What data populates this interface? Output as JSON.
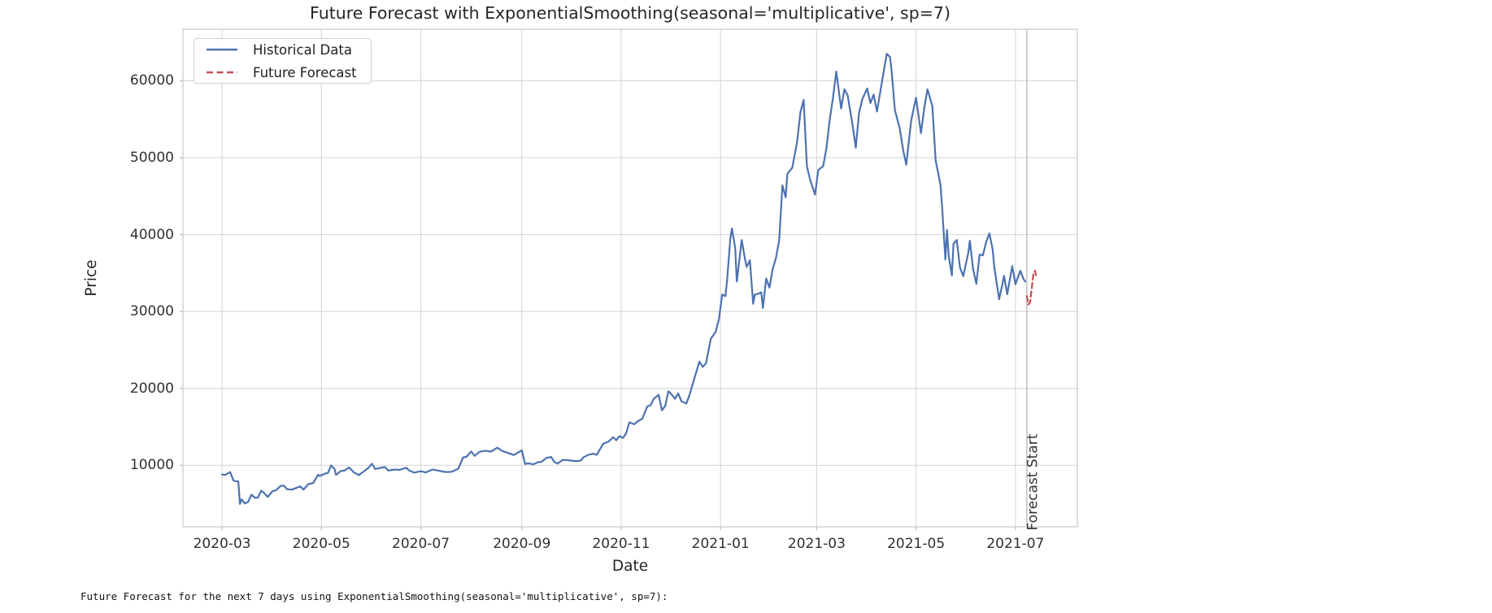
{
  "console_text": "Future Forecast for the next 7 days using ExponentialSmoothing(seasonal='multiplicative', sp=7):",
  "chart_data": {
    "type": "line",
    "title": "Future Forecast with ExponentialSmoothing(seasonal='multiplicative', sp=7)",
    "xlabel": "Date",
    "ylabel": "Price",
    "grid": true,
    "legend_position": "upper left",
    "xlim": [
      "2020-02-06",
      "2021-08-08"
    ],
    "ylim": [
      2000,
      66700
    ],
    "yticks": [
      {
        "value": 10000,
        "label": "10000"
      },
      {
        "value": 20000,
        "label": "20000"
      },
      {
        "value": 30000,
        "label": "30000"
      },
      {
        "value": 40000,
        "label": "40000"
      },
      {
        "value": 50000,
        "label": "50000"
      },
      {
        "value": 60000,
        "label": "60000"
      }
    ],
    "xticks": [
      {
        "date": "2020-03-01",
        "label": "2020-03"
      },
      {
        "date": "2020-05-01",
        "label": "2020-05"
      },
      {
        "date": "2020-07-01",
        "label": "2020-07"
      },
      {
        "date": "2020-09-01",
        "label": "2020-09"
      },
      {
        "date": "2020-11-01",
        "label": "2020-11"
      },
      {
        "date": "2021-01-01",
        "label": "2021-01"
      },
      {
        "date": "2021-03-01",
        "label": "2021-03"
      },
      {
        "date": "2021-05-01",
        "label": "2021-05"
      },
      {
        "date": "2021-07-01",
        "label": "2021-07"
      }
    ],
    "vline": {
      "date": "2021-07-08",
      "label": "Forecast Start",
      "color": "#bcbcbc"
    },
    "style": {
      "grid_color": "#d9d9d9",
      "spine_color": "#cccccc",
      "tick_color": "#bdbdbd",
      "background": "#ffffff"
    },
    "series": [
      {
        "name": "Historical Data",
        "color": "#4C72B0",
        "dash": null,
        "data": [
          [
            "2020-03-01",
            8800
          ],
          [
            "2020-03-03",
            8760
          ],
          [
            "2020-03-06",
            9120
          ],
          [
            "2020-03-08",
            8040
          ],
          [
            "2020-03-09",
            7930
          ],
          [
            "2020-03-11",
            7910
          ],
          [
            "2020-03-12",
            4970
          ],
          [
            "2020-03-13",
            5560
          ],
          [
            "2020-03-15",
            5030
          ],
          [
            "2020-03-17",
            5240
          ],
          [
            "2020-03-19",
            6190
          ],
          [
            "2020-03-21",
            5810
          ],
          [
            "2020-03-23",
            5790
          ],
          [
            "2020-03-25",
            6690
          ],
          [
            "2020-03-27",
            6370
          ],
          [
            "2020-03-29",
            5880
          ],
          [
            "2020-04-01",
            6640
          ],
          [
            "2020-04-03",
            6740
          ],
          [
            "2020-04-06",
            7330
          ],
          [
            "2020-04-08",
            7360
          ],
          [
            "2020-04-10",
            6870
          ],
          [
            "2020-04-13",
            6840
          ],
          [
            "2020-04-16",
            7100
          ],
          [
            "2020-04-18",
            7250
          ],
          [
            "2020-04-20",
            6840
          ],
          [
            "2020-04-23",
            7550
          ],
          [
            "2020-04-26",
            7700
          ],
          [
            "2020-04-29",
            8780
          ],
          [
            "2020-04-30",
            8620
          ],
          [
            "2020-05-03",
            8900
          ],
          [
            "2020-05-05",
            9000
          ],
          [
            "2020-05-07",
            9980
          ],
          [
            "2020-05-09",
            9550
          ],
          [
            "2020-05-10",
            8760
          ],
          [
            "2020-05-13",
            9270
          ],
          [
            "2020-05-15",
            9310
          ],
          [
            "2020-05-18",
            9720
          ],
          [
            "2020-05-21",
            9060
          ],
          [
            "2020-05-24",
            8720
          ],
          [
            "2020-05-27",
            9200
          ],
          [
            "2020-05-30",
            9700
          ],
          [
            "2020-06-01",
            10200
          ],
          [
            "2020-06-03",
            9520
          ],
          [
            "2020-06-06",
            9660
          ],
          [
            "2020-06-09",
            9770
          ],
          [
            "2020-06-11",
            9320
          ],
          [
            "2020-06-15",
            9450
          ],
          [
            "2020-06-18",
            9400
          ],
          [
            "2020-06-22",
            9690
          ],
          [
            "2020-06-24",
            9300
          ],
          [
            "2020-06-27",
            9050
          ],
          [
            "2020-07-01",
            9230
          ],
          [
            "2020-07-04",
            9070
          ],
          [
            "2020-07-08",
            9440
          ],
          [
            "2020-07-12",
            9300
          ],
          [
            "2020-07-16",
            9130
          ],
          [
            "2020-07-20",
            9160
          ],
          [
            "2020-07-24",
            9550
          ],
          [
            "2020-07-27",
            11030
          ],
          [
            "2020-07-29",
            11100
          ],
          [
            "2020-08-01",
            11800
          ],
          [
            "2020-08-03",
            11230
          ],
          [
            "2020-08-06",
            11760
          ],
          [
            "2020-08-10",
            11900
          ],
          [
            "2020-08-13",
            11780
          ],
          [
            "2020-08-17",
            12290
          ],
          [
            "2020-08-20",
            11860
          ],
          [
            "2020-08-23",
            11650
          ],
          [
            "2020-08-27",
            11330
          ],
          [
            "2020-09-01",
            11950
          ],
          [
            "2020-09-03",
            10170
          ],
          [
            "2020-09-05",
            10260
          ],
          [
            "2020-09-08",
            10130
          ],
          [
            "2020-09-11",
            10400
          ],
          [
            "2020-09-13",
            10440
          ],
          [
            "2020-09-16",
            10950
          ],
          [
            "2020-09-19",
            11080
          ],
          [
            "2020-09-21",
            10450
          ],
          [
            "2020-09-23",
            10230
          ],
          [
            "2020-09-26",
            10700
          ],
          [
            "2020-09-28",
            10690
          ],
          [
            "2020-10-01",
            10620
          ],
          [
            "2020-10-04",
            10550
          ],
          [
            "2020-10-07",
            10600
          ],
          [
            "2020-10-09",
            11060
          ],
          [
            "2020-10-12",
            11380
          ],
          [
            "2020-10-15",
            11500
          ],
          [
            "2020-10-17",
            11360
          ],
          [
            "2020-10-21",
            12800
          ],
          [
            "2020-10-24",
            13050
          ],
          [
            "2020-10-27",
            13650
          ],
          [
            "2020-10-29",
            13270
          ],
          [
            "2020-10-31",
            13800
          ],
          [
            "2020-11-02",
            13560
          ],
          [
            "2020-11-04",
            14130
          ],
          [
            "2020-11-06",
            15590
          ],
          [
            "2020-11-09",
            15330
          ],
          [
            "2020-11-11",
            15700
          ],
          [
            "2020-11-14",
            16070
          ],
          [
            "2020-11-17",
            17650
          ],
          [
            "2020-11-19",
            17800
          ],
          [
            "2020-11-21",
            18650
          ],
          [
            "2020-11-24",
            19160
          ],
          [
            "2020-11-26",
            17150
          ],
          [
            "2020-11-28",
            17720
          ],
          [
            "2020-11-30",
            19630
          ],
          [
            "2020-12-02",
            19200
          ],
          [
            "2020-12-04",
            18650
          ],
          [
            "2020-12-06",
            19350
          ],
          [
            "2020-12-08",
            18320
          ],
          [
            "2020-12-11",
            18040
          ],
          [
            "2020-12-13",
            19160
          ],
          [
            "2020-12-16",
            21340
          ],
          [
            "2020-12-19",
            23480
          ],
          [
            "2020-12-21",
            22800
          ],
          [
            "2020-12-23",
            23240
          ],
          [
            "2020-12-26",
            26440
          ],
          [
            "2020-12-29",
            27360
          ],
          [
            "2020-12-31",
            29000
          ],
          [
            "2021-01-02",
            32200
          ],
          [
            "2021-01-04",
            32000
          ],
          [
            "2021-01-05",
            34000
          ],
          [
            "2021-01-07",
            39450
          ],
          [
            "2021-01-08",
            40800
          ],
          [
            "2021-01-10",
            38250
          ],
          [
            "2021-01-11",
            33900
          ],
          [
            "2021-01-14",
            39300
          ],
          [
            "2021-01-16",
            36800
          ],
          [
            "2021-01-17",
            35800
          ],
          [
            "2021-01-19",
            36650
          ],
          [
            "2021-01-21",
            31000
          ],
          [
            "2021-01-22",
            32200
          ],
          [
            "2021-01-24",
            32300
          ],
          [
            "2021-01-26",
            32500
          ],
          [
            "2021-01-27",
            30450
          ],
          [
            "2021-01-29",
            34300
          ],
          [
            "2021-01-31",
            33100
          ],
          [
            "2021-02-02",
            35500
          ],
          [
            "2021-02-04",
            36950
          ],
          [
            "2021-02-06",
            39250
          ],
          [
            "2021-02-08",
            46400
          ],
          [
            "2021-02-10",
            44850
          ],
          [
            "2021-02-11",
            47900
          ],
          [
            "2021-02-14",
            48700
          ],
          [
            "2021-02-17",
            52100
          ],
          [
            "2021-02-19",
            55900
          ],
          [
            "2021-02-21",
            57500
          ],
          [
            "2021-02-23",
            48900
          ],
          [
            "2021-02-25",
            47100
          ],
          [
            "2021-02-28",
            45200
          ],
          [
            "2021-03-02",
            48400
          ],
          [
            "2021-03-05",
            48900
          ],
          [
            "2021-03-07",
            51200
          ],
          [
            "2021-03-09",
            54900
          ],
          [
            "2021-03-11",
            57800
          ],
          [
            "2021-03-13",
            61200
          ],
          [
            "2021-03-16",
            56400
          ],
          [
            "2021-03-18",
            58900
          ],
          [
            "2021-03-20",
            58100
          ],
          [
            "2021-03-23",
            54300
          ],
          [
            "2021-03-25",
            51300
          ],
          [
            "2021-03-27",
            55800
          ],
          [
            "2021-03-29",
            57600
          ],
          [
            "2021-04-01",
            59000
          ],
          [
            "2021-04-03",
            57100
          ],
          [
            "2021-04-05",
            58200
          ],
          [
            "2021-04-07",
            56000
          ],
          [
            "2021-04-10",
            59800
          ],
          [
            "2021-04-13",
            63500
          ],
          [
            "2021-04-15",
            63100
          ],
          [
            "2021-04-16",
            61300
          ],
          [
            "2021-04-18",
            56200
          ],
          [
            "2021-04-21",
            53800
          ],
          [
            "2021-04-23",
            51100
          ],
          [
            "2021-04-25",
            49100
          ],
          [
            "2021-04-28",
            54800
          ],
          [
            "2021-05-01",
            57800
          ],
          [
            "2021-05-04",
            53200
          ],
          [
            "2021-05-06",
            56400
          ],
          [
            "2021-05-08",
            58900
          ],
          [
            "2021-05-11",
            56700
          ],
          [
            "2021-05-13",
            49700
          ],
          [
            "2021-05-16",
            46450
          ],
          [
            "2021-05-17",
            43580
          ],
          [
            "2021-05-19",
            36750
          ],
          [
            "2021-05-20",
            40600
          ],
          [
            "2021-05-21",
            37300
          ],
          [
            "2021-05-23",
            34700
          ],
          [
            "2021-05-24",
            38800
          ],
          [
            "2021-05-26",
            39300
          ],
          [
            "2021-05-28",
            35700
          ],
          [
            "2021-05-30",
            34600
          ],
          [
            "2021-06-02",
            37600
          ],
          [
            "2021-06-03",
            39200
          ],
          [
            "2021-06-05",
            35500
          ],
          [
            "2021-06-07",
            33600
          ],
          [
            "2021-06-09",
            37400
          ],
          [
            "2021-06-11",
            37300
          ],
          [
            "2021-06-13",
            39000
          ],
          [
            "2021-06-15",
            40150
          ],
          [
            "2021-06-17",
            38100
          ],
          [
            "2021-06-18",
            35850
          ],
          [
            "2021-06-21",
            31600
          ],
          [
            "2021-06-23",
            33500
          ],
          [
            "2021-06-24",
            34650
          ],
          [
            "2021-06-26",
            32250
          ],
          [
            "2021-06-29",
            35900
          ],
          [
            "2021-07-01",
            33550
          ],
          [
            "2021-07-04",
            35300
          ],
          [
            "2021-07-06",
            34200
          ],
          [
            "2021-07-07",
            33900
          ]
        ]
      },
      {
        "name": "Future Forecast",
        "color": "#C44E52",
        "dash": "6.5 4",
        "data": [
          [
            "2021-07-08",
            32000
          ],
          [
            "2021-07-09",
            30900
          ],
          [
            "2021-07-10",
            31200
          ],
          [
            "2021-07-11",
            33000
          ],
          [
            "2021-07-12",
            34800
          ],
          [
            "2021-07-13",
            35300
          ],
          [
            "2021-07-14",
            34400
          ]
        ]
      }
    ]
  }
}
